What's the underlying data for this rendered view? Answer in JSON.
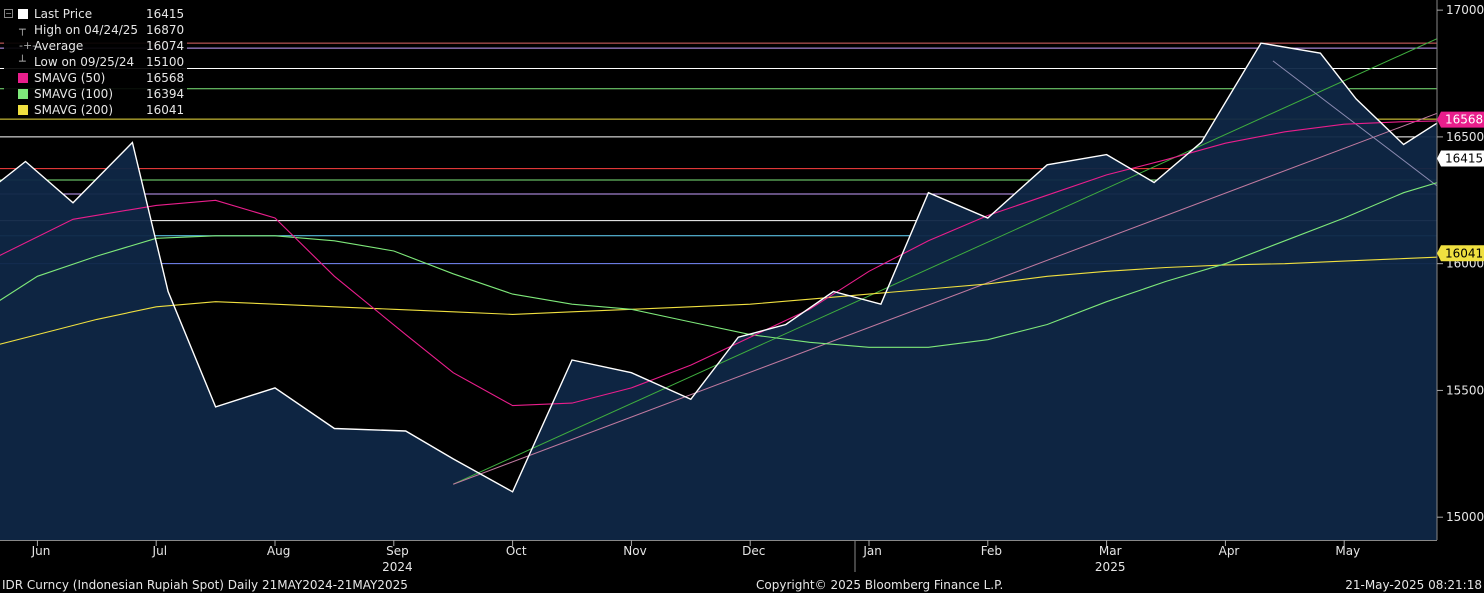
{
  "legend": [
    {
      "name": "Last Price",
      "value": "16415",
      "color": "#ffffff",
      "kind": "box"
    },
    {
      "name": "High on 04/24/25",
      "value": "16870",
      "color": "#aaaaaa",
      "kind": "high"
    },
    {
      "name": "Average",
      "value": "16074",
      "color": "#aaaaaa",
      "kind": "avg"
    },
    {
      "name": "Low on 09/25/24",
      "value": "15100",
      "color": "#aaaaaa",
      "kind": "low"
    },
    {
      "name": "SMAVG (50)",
      "value": "16568",
      "color": "#e91e8c",
      "kind": "box"
    },
    {
      "name": "SMAVG (100)",
      "value": "16394",
      "color": "#7ee87a",
      "kind": "box"
    },
    {
      "name": "SMAVG (200)",
      "value": "16041",
      "color": "#f0e040",
      "kind": "box"
    }
  ],
  "footer": {
    "left": "IDR Curncy (Indonesian Rupiah Spot)  Daily 21MAY2024-21MAY2025",
    "center": "Copyright© 2025 Bloomberg Finance L.P.",
    "right": "21-May-2025 08:21:18"
  },
  "chart_data": {
    "type": "area",
    "y_ticks": [
      15000,
      15500,
      16000,
      16500,
      17000
    ],
    "ylim": [
      14910,
      17040
    ],
    "month_labels": [
      "Jun",
      "Jul",
      "Aug",
      "Sep",
      "Oct",
      "Nov",
      "Dec",
      "Jan",
      "Feb",
      "Mar",
      "Apr",
      "May"
    ],
    "year_labels": [
      {
        "label": "2024",
        "under": "Sep"
      },
      {
        "label": "2025",
        "under": "Mar"
      }
    ],
    "price_tags": [
      {
        "value": "16568",
        "y": 16568,
        "bg": "#e91e8c",
        "fg": "#ffffff"
      },
      {
        "value": "16415",
        "y": 16415,
        "bg": "#ffffff",
        "fg": "#000000"
      },
      {
        "value": "16041",
        "y": 16041,
        "bg": "#f0e040",
        "fg": "#000000"
      }
    ],
    "h_lines": [
      {
        "y": 16870,
        "color": "#e06666"
      },
      {
        "y": 16850,
        "color": "#c9a0ff"
      },
      {
        "y": 16770,
        "color": "#ffffff"
      },
      {
        "y": 16690,
        "color": "#7ee87a"
      },
      {
        "y": 16570,
        "color": "#f0e040"
      },
      {
        "y": 16500,
        "color": "#ffffff"
      },
      {
        "y": 16375,
        "color": "#ff4040"
      },
      {
        "y": 16330,
        "color": "#7ee87a"
      },
      {
        "y": 16275,
        "color": "#c9a0ff"
      },
      {
        "y": 16170,
        "color": "#ffffff"
      },
      {
        "y": 16110,
        "color": "#66d9ff"
      },
      {
        "y": 16000,
        "color": "#7a8cff"
      }
    ],
    "series": [
      {
        "name": "Last Price",
        "color": "#ffffff",
        "x": [
          0,
          0.4,
          0.8,
          1.3,
          1.6,
          2.0,
          2.5,
          3.0,
          3.6,
          4.0,
          4.5,
          5.0,
          5.5,
          6.0,
          6.4,
          6.8,
          7.2,
          7.6,
          8.0,
          8.5,
          9.0,
          9.5,
          9.9,
          10.3,
          10.8,
          11.3,
          11.6,
          12.0,
          12.3,
          12.5,
          12.9
        ],
        "y": [
          16255,
          16403,
          16240,
          16478,
          15890,
          15435,
          15510,
          15350,
          15340,
          15230,
          15100,
          15620,
          15570,
          15465,
          15710,
          15760,
          15890,
          15840,
          16280,
          16180,
          16390,
          16430,
          16320,
          16480,
          16870,
          16830,
          16650,
          16470,
          16560,
          16470,
          16415
        ]
      },
      {
        "name": "SMAVG (50)",
        "color": "#e91e8c",
        "x": [
          0,
          0.8,
          1.5,
          2.0,
          2.5,
          3.0,
          3.6,
          4.0,
          4.5,
          5.0,
          5.5,
          6.0,
          6.5,
          7.0,
          7.5,
          8.0,
          8.5,
          9.0,
          9.5,
          10.0,
          10.5,
          11.0,
          11.5,
          12.0,
          12.5,
          12.9
        ],
        "y": [
          15990,
          16175,
          16230,
          16250,
          16180,
          15950,
          15720,
          15570,
          15440,
          15450,
          15510,
          15600,
          15710,
          15820,
          15970,
          16090,
          16190,
          16270,
          16350,
          16410,
          16475,
          16520,
          16550,
          16560,
          16565,
          16568
        ]
      },
      {
        "name": "SMAVG (100)",
        "color": "#7ee87a",
        "x": [
          0,
          0.5,
          1.0,
          1.5,
          2.0,
          2.5,
          3.0,
          3.5,
          4.0,
          4.5,
          5.0,
          5.5,
          6.0,
          6.5,
          7.0,
          7.5,
          8.0,
          8.5,
          9.0,
          9.5,
          10.0,
          10.5,
          11.0,
          11.5,
          12.0,
          12.5,
          12.9
        ],
        "y": [
          15800,
          15950,
          16030,
          16100,
          16110,
          16110,
          16090,
          16050,
          15960,
          15880,
          15840,
          15820,
          15770,
          15720,
          15690,
          15670,
          15670,
          15700,
          15760,
          15850,
          15930,
          16000,
          16090,
          16180,
          16280,
          16350,
          16394
        ]
      },
      {
        "name": "SMAVG (200)",
        "color": "#f0e040",
        "x": [
          0,
          0.5,
          1.0,
          1.5,
          2.0,
          2.5,
          3.0,
          3.5,
          4.0,
          4.5,
          5.0,
          5.5,
          6.0,
          6.5,
          7.0,
          7.5,
          8.0,
          8.5,
          9.0,
          9.5,
          10.0,
          10.5,
          11.0,
          11.5,
          12.0,
          12.5,
          12.9
        ],
        "y": [
          15660,
          15720,
          15780,
          15830,
          15850,
          15840,
          15830,
          15820,
          15810,
          15800,
          15810,
          15820,
          15830,
          15840,
          15860,
          15880,
          15900,
          15920,
          15950,
          15970,
          15985,
          15995,
          16000,
          16010,
          16020,
          16030,
          16041
        ]
      }
    ],
    "trend_lines": [
      {
        "color": "#3fae3f",
        "x1": 4.0,
        "y1": 15130,
        "x2": 13.0,
        "y2": 17040
      },
      {
        "color": "#c07aa0",
        "x1": 4.0,
        "y1": 15130,
        "x2": 13.0,
        "y2": 16720
      },
      {
        "color": "#8a8ab0",
        "x1": 10.9,
        "y1": 16800,
        "x2": 13.0,
        "y2": 16050
      }
    ]
  }
}
